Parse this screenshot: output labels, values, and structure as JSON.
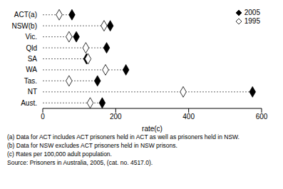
{
  "chart_data": {
    "type": "dot",
    "orientation": "horizontal",
    "categories": [
      "ACT(a)",
      "NSW(b)",
      "Vic.",
      "Qld",
      "SA",
      "WA",
      "Tas.",
      "NT",
      "Aust."
    ],
    "series": [
      {
        "name": "2005",
        "color": "#000000",
        "marker": "diamond",
        "values": [
          80,
          185,
          92,
          175,
          120,
          228,
          150,
          575,
          163
        ]
      },
      {
        "name": "1995",
        "color": "#000000",
        "marker": "open-diamond",
        "values": [
          45,
          168,
          72,
          118,
          124,
          172,
          72,
          385,
          130
        ]
      }
    ],
    "x_label": "rate(c)",
    "xlim": [
      0,
      600
    ],
    "xticks": [
      0,
      200,
      400,
      600
    ],
    "grid": false,
    "legend": "top-right",
    "notes": [
      "(a) Data for ACT includes ACT prisoners held in ACT as well as prisoners held in NSW.",
      "(b) Data for NSW excludes ACT prisoners held in NSW prisons.",
      "(c) Rates per 100,000 adult population.",
      "Source: Prisoners in Australia, 2005, (cat. no. 4517.0)."
    ]
  }
}
